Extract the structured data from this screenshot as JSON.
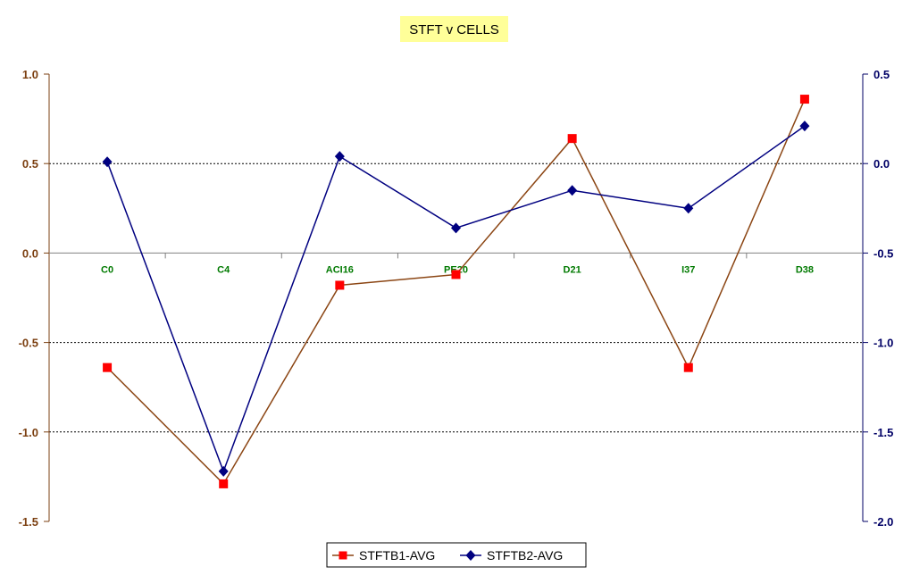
{
  "chart_data": {
    "type": "line",
    "title": "STFT v CELLS",
    "categories": [
      "C0",
      "C4",
      "ACI16",
      "PE20",
      "D21",
      "I37",
      "D38"
    ],
    "y_left": {
      "range": [
        -1.5,
        1.0
      ],
      "ticks": [
        "1.0",
        "0.5",
        "0.0",
        "-0.5",
        "-1.0",
        "-1.5"
      ],
      "color": "#7b3f10"
    },
    "y_right": {
      "range": [
        -2.0,
        0.5
      ],
      "ticks": [
        "0.5",
        "0.0",
        "-0.5",
        "-1.0",
        "-1.5",
        "-2.0"
      ],
      "color": "#000066"
    },
    "gridlines": "dashed, horizontal",
    "legend_position": "bottom",
    "series": [
      {
        "name": "STFTB1-AVG",
        "axis": "left",
        "color": "#8b4513",
        "marker": "square",
        "marker_color": "#ff0000",
        "values": [
          -0.64,
          -1.29,
          -0.18,
          -0.12,
          0.64,
          -0.64,
          0.86
        ]
      },
      {
        "name": "STFTB2-AVG",
        "axis": "right",
        "color": "#000080",
        "marker": "diamond",
        "marker_color": "#000080",
        "values": [
          0.01,
          -1.72,
          0.04,
          -0.36,
          -0.15,
          -0.25,
          0.21
        ]
      }
    ]
  }
}
